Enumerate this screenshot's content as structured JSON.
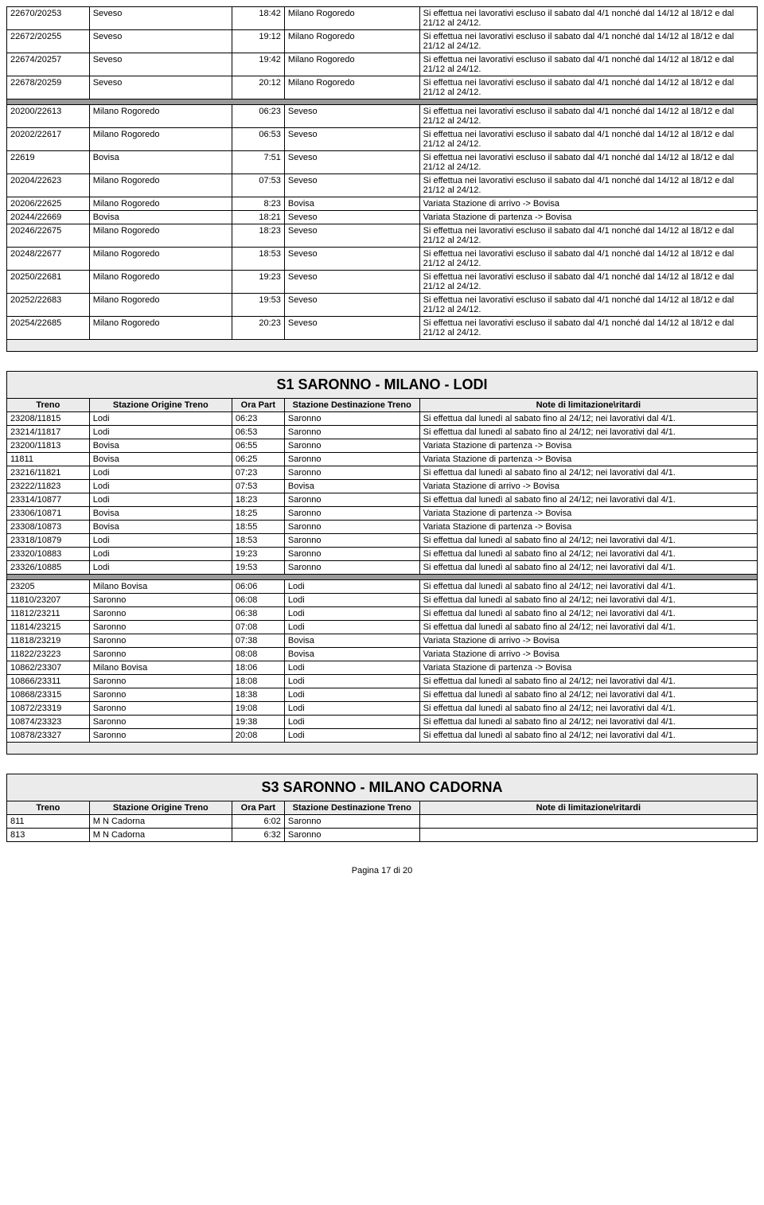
{
  "noteA": "Si effettua nei lavorativi escluso il sabato dal 4/1 nonché dal 14/12 al 18/12 e dal 21/12 al 24/12.",
  "noteB": "Si effettua dal lunedì al sabato fino al 24/12; nei lavorativi dal 4/1.",
  "noteArrBov": "Variata Stazione di arrivo -> Bovisa",
  "notePartBov": "Variata Stazione di partenza -> Bovisa",
  "hdr": {
    "train": "Treno",
    "orig": "Stazione Origine Treno",
    "time": "Ora Part",
    "dest": "Stazione Destinazione Treno",
    "note": "Note di limitazione\\ritardi"
  },
  "titleS1": "S1 SARONNO - MILANO - LODI",
  "titleS3": "S3 SARONNO - MILANO CADORNA",
  "pageNum": "Pagina 17 di 20",
  "t1": {
    "r0": {
      "tr": "22670/20253",
      "o": "Seveso",
      "t": "18:42",
      "d": "Milano Rogoredo"
    },
    "r1": {
      "tr": "22672/20255",
      "o": "Seveso",
      "t": "19:12",
      "d": "Milano Rogoredo"
    },
    "r2": {
      "tr": "22674/20257",
      "o": "Seveso",
      "t": "19:42",
      "d": "Milano Rogoredo"
    },
    "r3": {
      "tr": "22678/20259",
      "o": "Seveso",
      "t": "20:12",
      "d": "Milano Rogoredo"
    },
    "r4": {
      "tr": "20200/22613",
      "o": "Milano Rogoredo",
      "t": "06:23",
      "d": "Seveso"
    },
    "r5": {
      "tr": "20202/22617",
      "o": "Milano Rogoredo",
      "t": "06:53",
      "d": "Seveso"
    },
    "r6": {
      "tr": "22619",
      "o": "Bovisa",
      "t": "7:51",
      "d": "Seveso"
    },
    "r7": {
      "tr": "20204/22623",
      "o": "Milano Rogoredo",
      "t": "07:53",
      "d": "Seveso"
    },
    "r8": {
      "tr": "20206/22625",
      "o": "Milano Rogoredo",
      "t": "8:23",
      "d": "Bovisa"
    },
    "r9": {
      "tr": "20244/22669",
      "o": "Bovisa",
      "t": "18:21",
      "d": "Seveso"
    },
    "r10": {
      "tr": "20246/22675",
      "o": "Milano Rogoredo",
      "t": "18:23",
      "d": "Seveso"
    },
    "r11": {
      "tr": "20248/22677",
      "o": "Milano Rogoredo",
      "t": "18:53",
      "d": "Seveso"
    },
    "r12": {
      "tr": "20250/22681",
      "o": "Milano Rogoredo",
      "t": "19:23",
      "d": "Seveso"
    },
    "r13": {
      "tr": "20252/22683",
      "o": "Milano Rogoredo",
      "t": "19:53",
      "d": "Seveso"
    },
    "r14": {
      "tr": "20254/22685",
      "o": "Milano Rogoredo",
      "t": "20:23",
      "d": "Seveso"
    }
  },
  "t2": {
    "r0": {
      "tr": "23208/11815",
      "o": "Lodi",
      "t": "06:23",
      "d": "Saronno"
    },
    "r1": {
      "tr": "23214/11817",
      "o": "Lodi",
      "t": "06:53",
      "d": "Saronno"
    },
    "r2": {
      "tr": "23200/11813",
      "o": "Bovisa",
      "t": "06:55",
      "d": "Saronno"
    },
    "r3": {
      "tr": "11811",
      "o": "Bovisa",
      "t": "06:25",
      "d": "Saronno"
    },
    "r4": {
      "tr": "23216/11821",
      "o": "Lodi",
      "t": "07:23",
      "d": "Saronno"
    },
    "r5": {
      "tr": "23222/11823",
      "o": "Lodi",
      "t": "07:53",
      "d": "Bovisa"
    },
    "r6": {
      "tr": "23314/10877",
      "o": "Lodi",
      "t": "18:23",
      "d": "Saronno"
    },
    "r7": {
      "tr": "23306/10871",
      "o": "Bovisa",
      "t": "18:25",
      "d": "Saronno"
    },
    "r8": {
      "tr": "23308/10873",
      "o": "Bovisa",
      "t": "18:55",
      "d": "Saronno"
    },
    "r9": {
      "tr": "23318/10879",
      "o": "Lodi",
      "t": "18:53",
      "d": "Saronno"
    },
    "r10": {
      "tr": "23320/10883",
      "o": "Lodi",
      "t": "19:23",
      "d": "Saronno"
    },
    "r11": {
      "tr": "23326/10885",
      "o": "Lodi",
      "t": "19:53",
      "d": "Saronno"
    },
    "r12": {
      "tr": "23205",
      "o": "Milano Bovisa",
      "t": "06:06",
      "d": "Lodi"
    },
    "r13": {
      "tr": "11810/23207",
      "o": "Saronno",
      "t": "06:08",
      "d": "Lodi"
    },
    "r14": {
      "tr": "11812/23211",
      "o": "Saronno",
      "t": "06:38",
      "d": "Lodi"
    },
    "r15": {
      "tr": "11814/23215",
      "o": "Saronno",
      "t": "07:08",
      "d": "Lodi"
    },
    "r16": {
      "tr": "11818/23219",
      "o": "Saronno",
      "t": "07:38",
      "d": "Bovisa"
    },
    "r17": {
      "tr": "11822/23223",
      "o": "Saronno",
      "t": "08:08",
      "d": "Bovisa"
    },
    "r18": {
      "tr": "10862/23307",
      "o": "Milano Bovisa",
      "t": "18:06",
      "d": "Lodi"
    },
    "r19": {
      "tr": "10866/23311",
      "o": "Saronno",
      "t": "18:08",
      "d": "Lodi"
    },
    "r20": {
      "tr": "10868/23315",
      "o": "Saronno",
      "t": "18:38",
      "d": "Lodi"
    },
    "r21": {
      "tr": "10872/23319",
      "o": "Saronno",
      "t": "19:08",
      "d": "Lodi"
    },
    "r22": {
      "tr": "10874/23323",
      "o": "Saronno",
      "t": "19:38",
      "d": "Lodi"
    },
    "r23": {
      "tr": "10878/23327",
      "o": "Saronno",
      "t": "20:08",
      "d": "Lodi"
    }
  },
  "t3": {
    "r0": {
      "tr": "811",
      "o": "M N Cadorna",
      "t": "6:02",
      "d": "Saronno"
    },
    "r1": {
      "tr": "813",
      "o": "M N Cadorna",
      "t": "6:32",
      "d": "Saronno"
    }
  }
}
